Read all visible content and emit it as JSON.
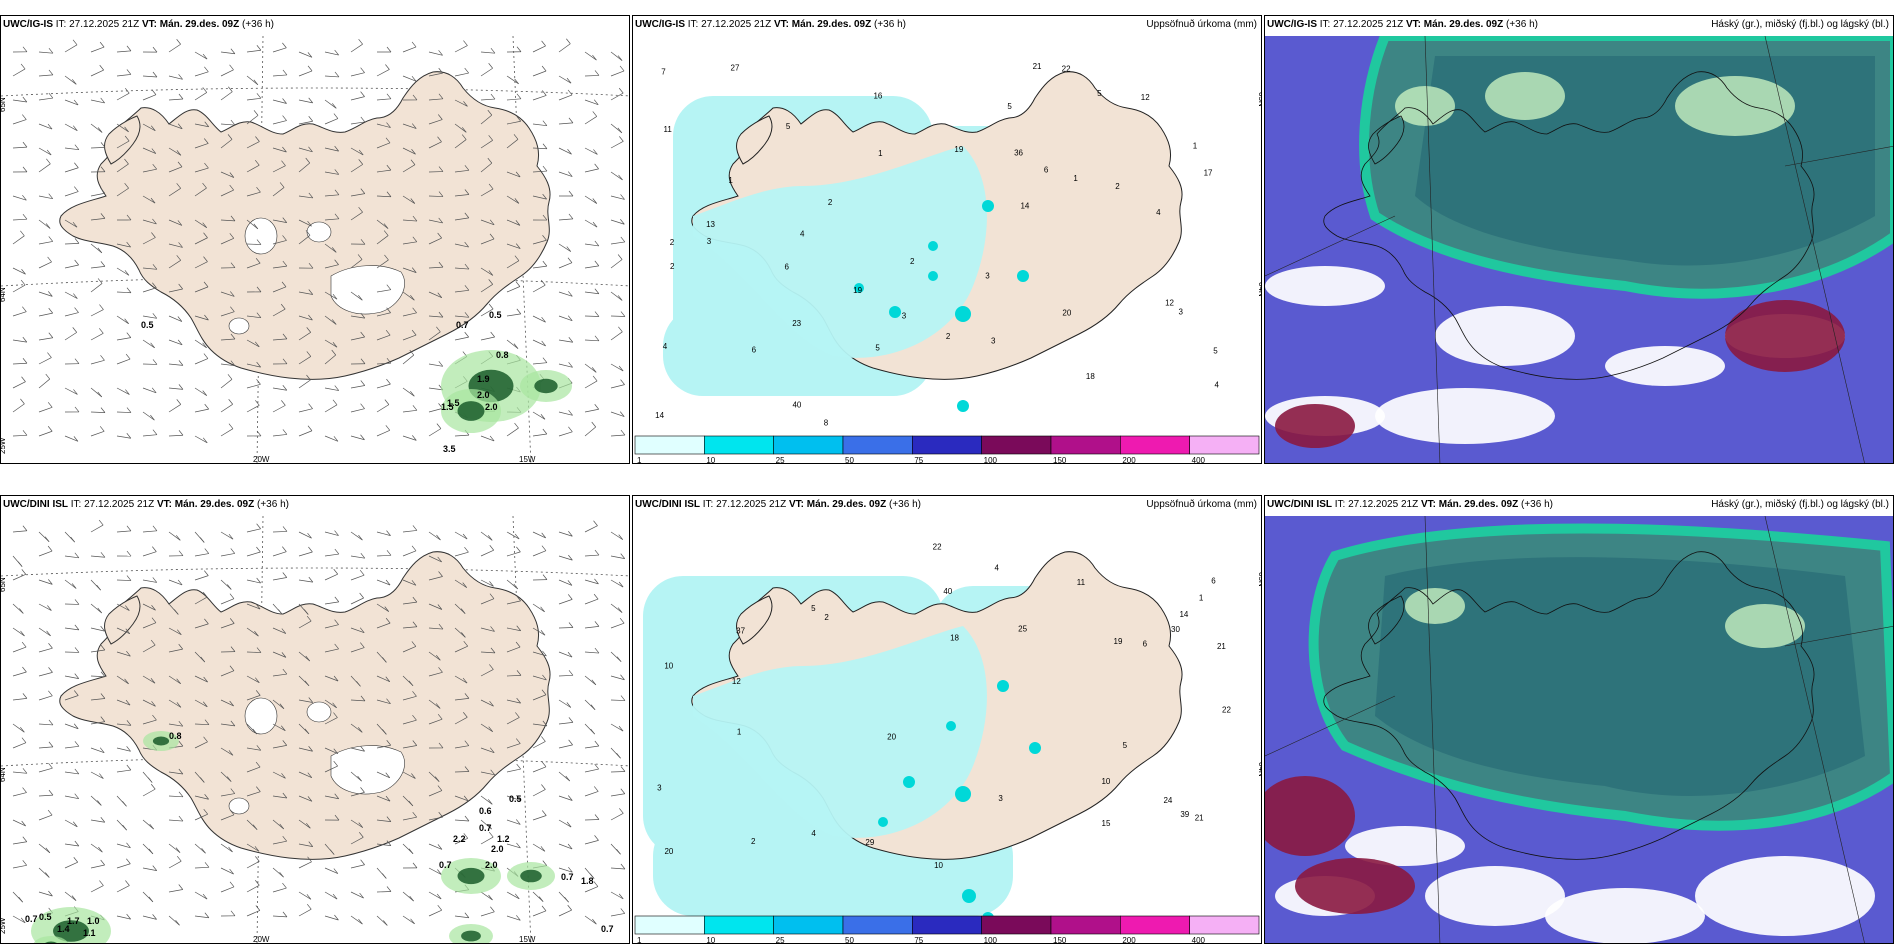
{
  "panels": [
    {
      "id": "p1",
      "model": "UWC/IG-IS",
      "issue_time": "IT: 27.12.2025 21Z",
      "valid_label": "VT:",
      "valid_time": "Mán. 29.des. 09Z",
      "lead": "(+36 h)",
      "right_title": "",
      "type": "wind",
      "coords": {
        "lat_top": "65N",
        "lat_mid": "64N",
        "lon_left": "25W",
        "lon_a": "20W",
        "lon_b": "15W"
      },
      "values": [
        "0.5",
        "0.7",
        "0.5",
        "0.8",
        "1.9",
        "1.5",
        "2.0",
        "2.0",
        "1.5",
        "3.5"
      ]
    },
    {
      "id": "p2",
      "model": "UWC/IG-IS",
      "issue_time": "IT: 27.12.2025 21Z",
      "valid_label": "VT:",
      "valid_time": "Mán. 29.des. 09Z",
      "lead": "(+36 h)",
      "right_title": "Uppsöfnuð úrkoma (mm)",
      "type": "precip",
      "coords": {
        "lat_top": "65N",
        "lat_mid": "64N"
      },
      "values": [
        "1",
        "2",
        "2",
        "4",
        "3",
        "5",
        "5",
        "1",
        "2",
        "3",
        "4",
        "5",
        "6",
        "3",
        "19",
        "13",
        "16",
        "19",
        "14",
        "36",
        "40",
        "23",
        "14",
        "12",
        "27",
        "18",
        "21",
        "11",
        "8",
        "7",
        "6",
        "5",
        "4",
        "3",
        "2",
        "20",
        "17",
        "12",
        "22",
        "1",
        "2",
        "3",
        "4",
        "5",
        "6",
        "2",
        "1"
      ]
    },
    {
      "id": "p3",
      "model": "UWC/IG-IS",
      "issue_time": "IT: 27.12.2025 21Z",
      "valid_label": "VT:",
      "valid_time": "Mán. 29.des. 09Z",
      "lead": "(+36 h)",
      "right_title": "Háský (gr.), miðský (fj.bl.) og lágský (bl.)",
      "type": "cloud"
    },
    {
      "id": "p4",
      "model": "UWC/DINI ISL",
      "issue_time": "IT: 27.12.2025 21Z",
      "valid_label": "VT:",
      "valid_time": "Mán. 29.des. 09Z",
      "lead": "(+36 h)",
      "right_title": "",
      "type": "wind",
      "coords": {
        "lat_top": "65N",
        "lat_mid": "64N",
        "lon_left": "25W",
        "lon_a": "20W",
        "lon_b": "15W"
      },
      "values": [
        "0.8",
        "0.7",
        "0.6",
        "0.5",
        "1.2",
        "2.0",
        "2.2",
        "2.0",
        "0.7",
        "0.7",
        "0.5",
        "1.4",
        "1.7",
        "1.0",
        "1.1",
        "1.8",
        "0.7",
        "0.7"
      ]
    },
    {
      "id": "p5",
      "model": "UWC/DINI ISL",
      "issue_time": "IT: 27.12.2025 21Z",
      "valid_label": "VT:",
      "valid_time": "Mán. 29.des. 09Z",
      "lead": "(+36 h)",
      "right_title": "Uppsöfnuð úrkoma (mm)",
      "type": "precip",
      "coords": {
        "lat_top": "65N",
        "lat_mid": "64N"
      },
      "values": [
        "1",
        "2",
        "3",
        "4",
        "5",
        "6",
        "10",
        "22",
        "20",
        "39",
        "37",
        "18",
        "24",
        "25",
        "10",
        "11",
        "15",
        "12",
        "19",
        "14",
        "21",
        "20",
        "29",
        "40",
        "30",
        "22",
        "2",
        "3",
        "4",
        "5",
        "6",
        "10",
        "1",
        "21"
      ]
    },
    {
      "id": "p6",
      "model": "UWC/DINI ISL",
      "issue_time": "IT: 27.12.2025 21Z",
      "valid_label": "VT:",
      "valid_time": "Mán. 29.des. 09Z",
      "lead": "(+36 h)",
      "right_title": "Háský (gr.), miðský (fj.bl.) og lágský (bl.)",
      "type": "cloud"
    }
  ],
  "precip_legend": {
    "ticks": [
      "1",
      "10",
      "25",
      "50",
      "75",
      "100",
      "150",
      "200",
      "400"
    ],
    "colors": [
      "#e0ffff",
      "#00e5ee",
      "#00bfef",
      "#3a6fe8",
      "#2a2abf",
      "#7a0a5a",
      "#b0108a",
      "#ee1ab0",
      "#f5b0f5"
    ]
  },
  "colors": {
    "land": "#f2e3d5",
    "precip_light": "#b6f4f4",
    "precip_mid": "#00d8d8",
    "precip_dark": "#00aacc",
    "green_dark": "#1a5c2a",
    "green_light": "#a8e6a0",
    "cloud_high": "#3a8a7c",
    "cloud_mid": "#5a5ad0",
    "cloud_low": "#8a1840",
    "cloud_edge": "#1ad49a"
  }
}
